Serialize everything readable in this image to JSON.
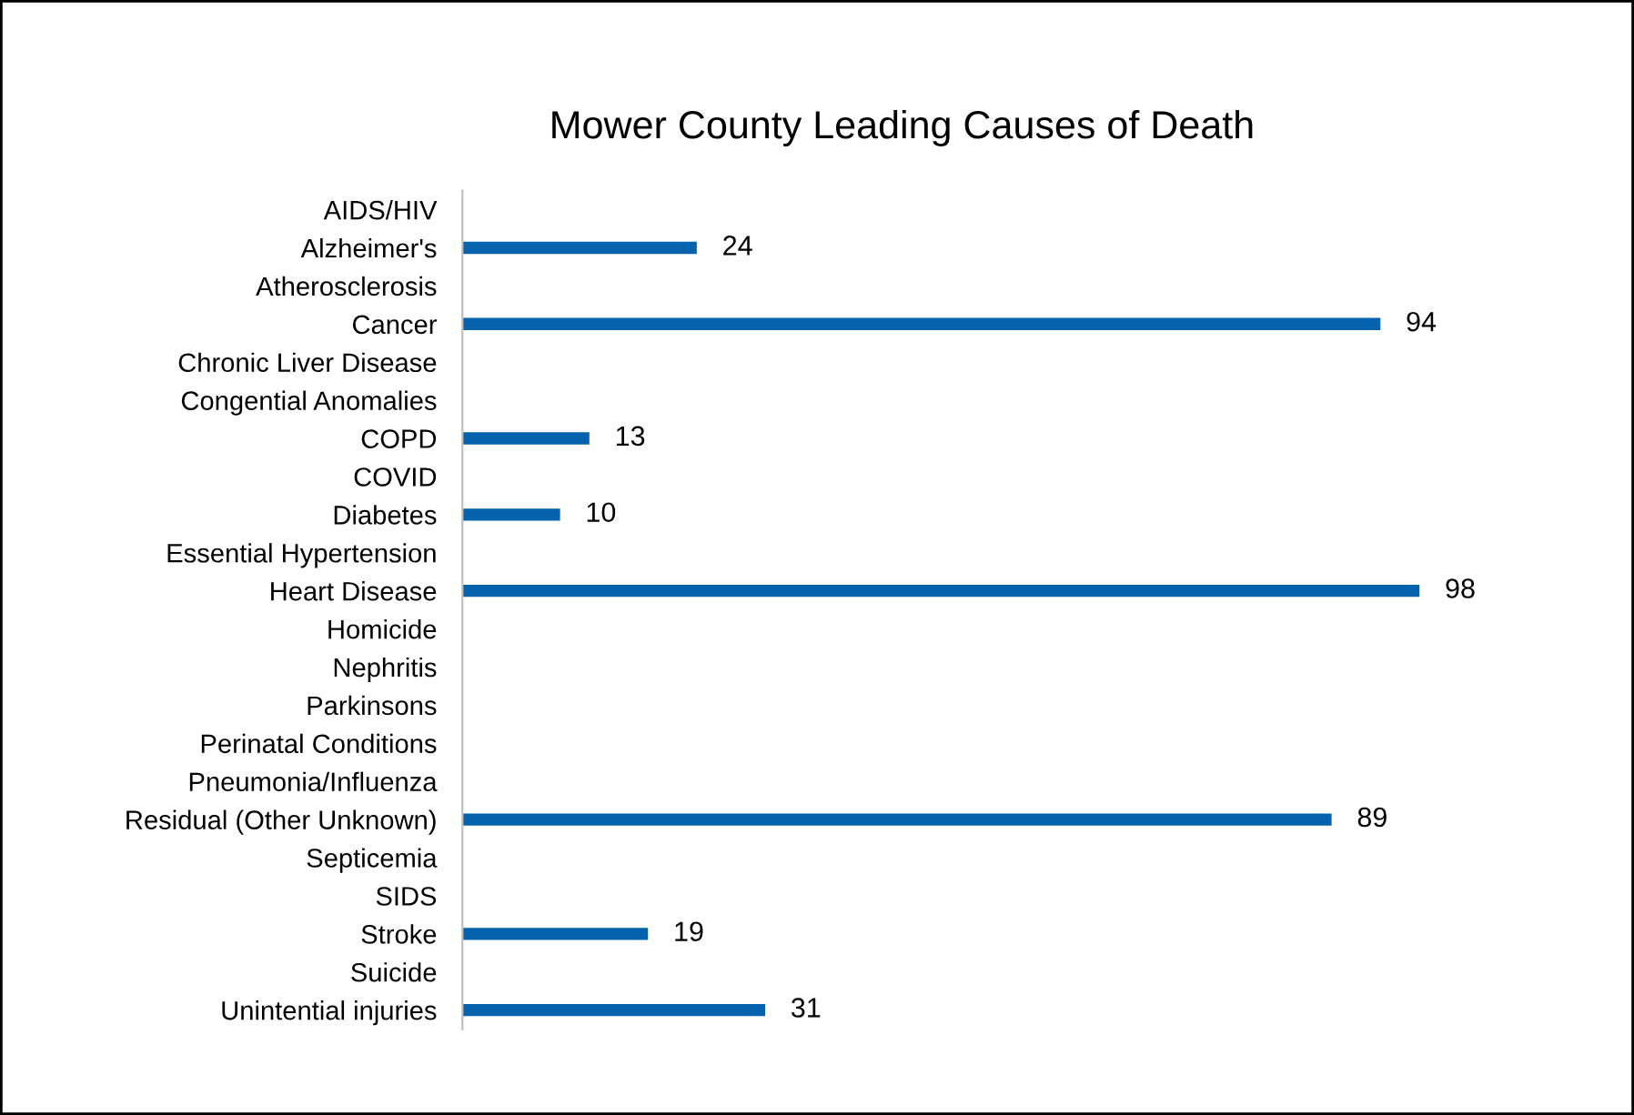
{
  "chart_data": {
    "type": "bar",
    "orientation": "horizontal",
    "title": "Mower County Leading Causes of Death",
    "categories": [
      "AIDS/HIV",
      "Alzheimer's",
      "Atherosclerosis",
      "Cancer",
      "Chronic Liver Disease",
      "Congential Anomalies",
      "COPD",
      "COVID",
      "Diabetes",
      "Essential Hypertension",
      "Heart Disease",
      "Homicide",
      "Nephritis",
      "Parkinsons",
      "Perinatal Conditions",
      "Pneumonia/Influenza",
      "Residual (Other Unknown)",
      "Septicemia",
      "SIDS",
      "Stroke",
      "Suicide",
      "Unintential injuries"
    ],
    "values": [
      null,
      24,
      null,
      94,
      null,
      null,
      13,
      null,
      10,
      null,
      98,
      null,
      null,
      null,
      null,
      null,
      89,
      null,
      null,
      19,
      null,
      31
    ],
    "color": "#0563ad",
    "tick_labels": "y",
    "data_labels": true,
    "grid": false,
    "legend": false
  }
}
